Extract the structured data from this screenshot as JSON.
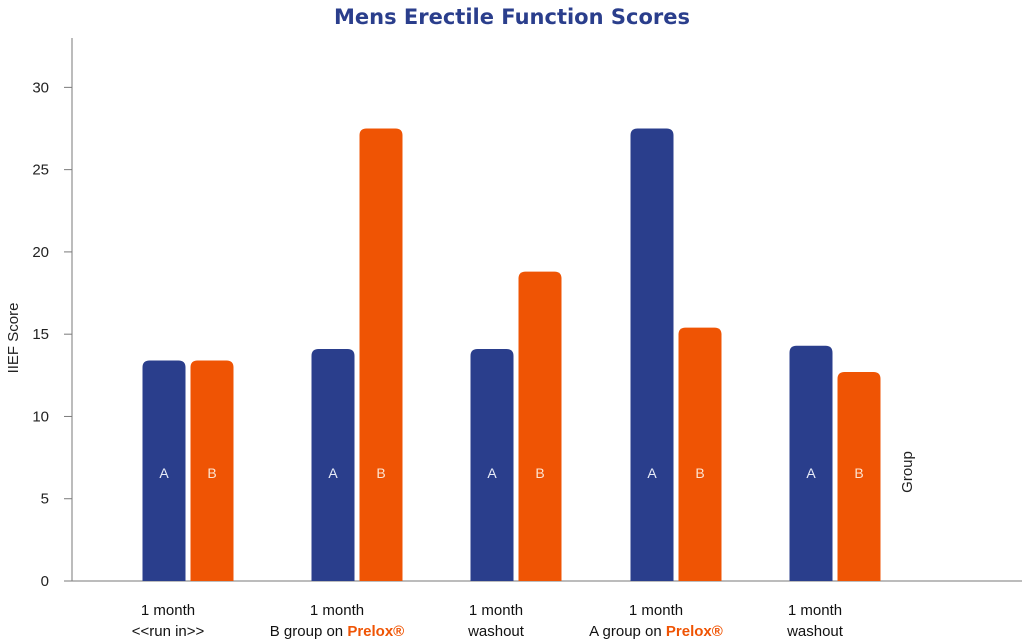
{
  "chart_data": {
    "type": "bar",
    "title": "Mens Erectile Function Scores",
    "ylabel": "IIEF Score",
    "legend_title": "Group",
    "ylim": [
      0,
      33
    ],
    "yticks": [
      0,
      5,
      10,
      15,
      20,
      25,
      30
    ],
    "grid": false,
    "categories": [
      {
        "line1": "1 month",
        "line2": "<<run in>>",
        "highlight": ""
      },
      {
        "line1": "1 month",
        "line2": "B group on ",
        "highlight": "Prelox®"
      },
      {
        "line1": "1 month",
        "line2": "washout",
        "highlight": ""
      },
      {
        "line1": "1 month",
        "line2": "A group on ",
        "highlight": "Prelox®"
      },
      {
        "line1": "1 month",
        "line2": "washout",
        "highlight": ""
      }
    ],
    "series": [
      {
        "name": "A",
        "color": "#2a3e8c",
        "label_color": "#e8ecf8",
        "values": [
          13.4,
          14.1,
          14.1,
          27.5,
          14.3
        ]
      },
      {
        "name": "B",
        "color": "#ef5404",
        "label_color": "#fde3cf",
        "values": [
          13.4,
          27.5,
          18.8,
          15.4,
          12.7
        ]
      }
    ]
  }
}
